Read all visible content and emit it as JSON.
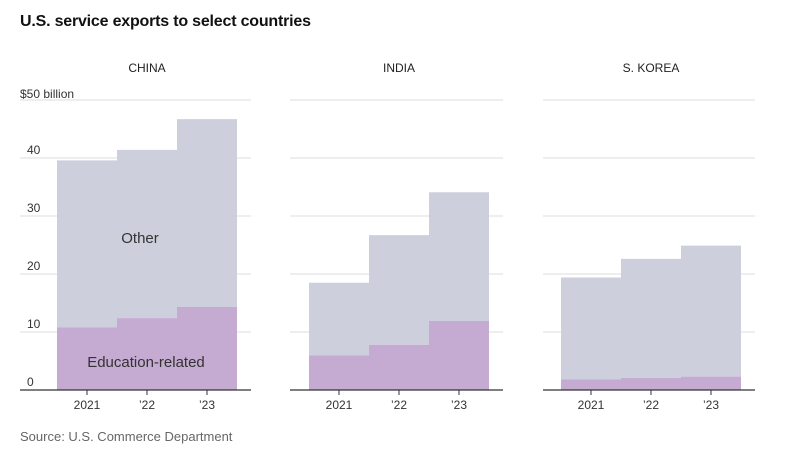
{
  "title": "U.S. service exports to select countries",
  "source": "Source: U.S. Commerce Department",
  "colors": {
    "other": "#cdd0dc",
    "education": "#c5aad2",
    "grid": "#dcdcdc",
    "axis": "#333333"
  },
  "chart_data": {
    "type": "area",
    "stacked": true,
    "step": true,
    "y_unit_label": "$50 billion",
    "ylim": [
      0,
      50
    ],
    "yticks": [
      "0",
      "10",
      "20",
      "30",
      "40"
    ],
    "x_tick_labels": [
      "2021",
      "’22",
      "’23"
    ],
    "series_labels": {
      "other": "Other",
      "education": "Education-related"
    },
    "grid": true,
    "panels": [
      {
        "name": "CHINA",
        "education": [
          10.8,
          12.4,
          14.3
        ],
        "total": [
          39.6,
          41.4,
          46.7
        ]
      },
      {
        "name": "INDIA",
        "education": [
          6.0,
          7.8,
          11.9
        ],
        "total": [
          18.5,
          26.7,
          34.1
        ]
      },
      {
        "name": "S. KOREA",
        "education": [
          1.8,
          2.1,
          2.3
        ],
        "total": [
          19.4,
          22.6,
          24.9
        ]
      }
    ]
  }
}
